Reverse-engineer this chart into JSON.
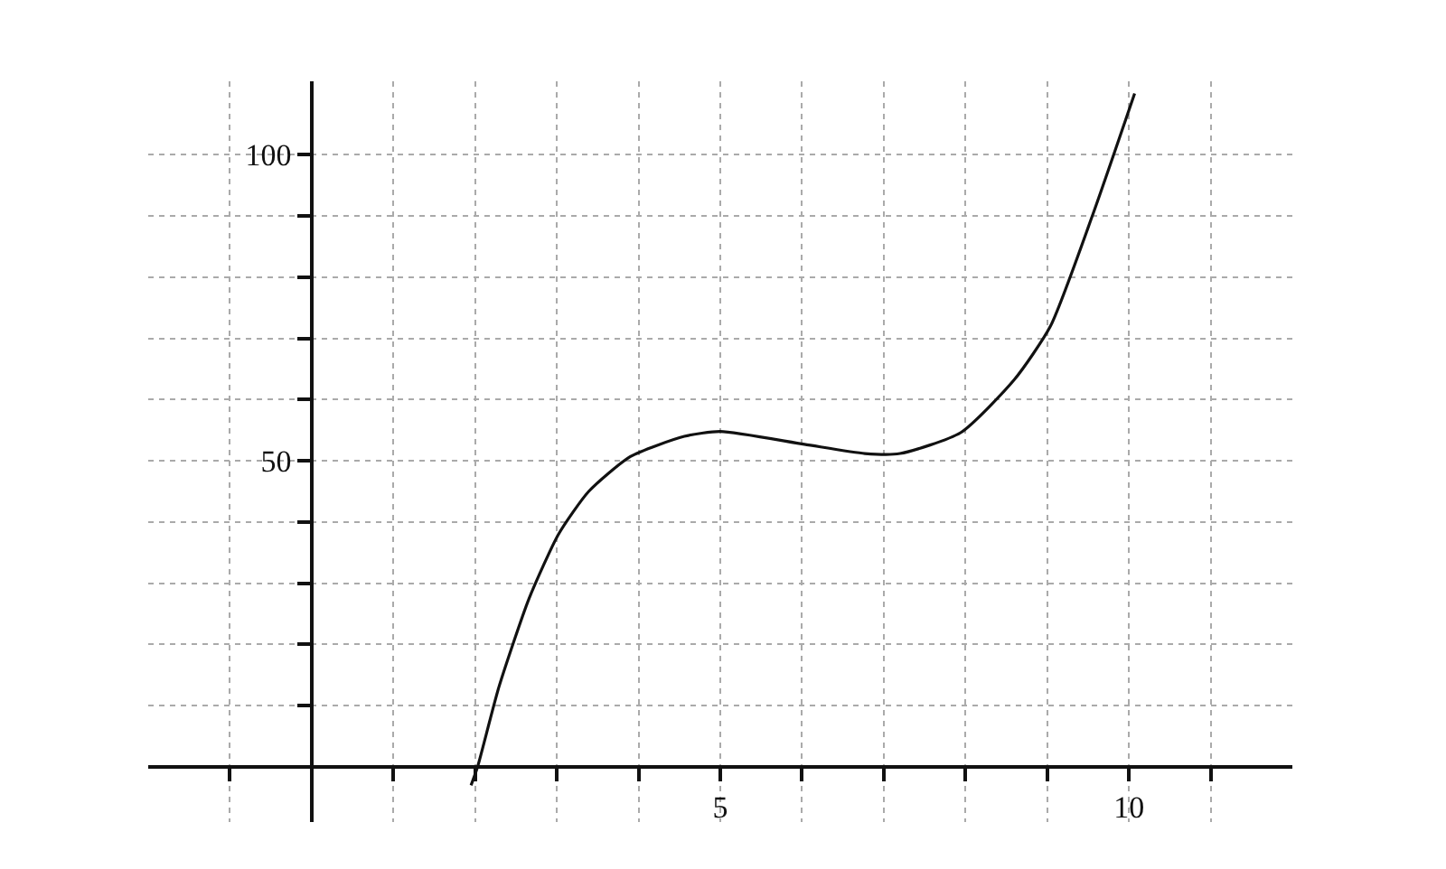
{
  "chart_data": {
    "type": "line",
    "x": [
      1.95,
      2.03,
      2.29,
      2.66,
      3.02,
      3.39,
      3.9,
      4.56,
      5,
      6.03,
      6.77,
      7.2,
      7.94,
      8.6,
      9.04,
      9.56,
      10.07
    ],
    "series": [
      {
        "color": "#111111",
        "values": [
          -3,
          0,
          13,
          27.5,
          38,
          45,
          50.7,
          54,
          54.8,
          52.7,
          51.2,
          51.2,
          54.6,
          63.3,
          72,
          90.3,
          110
        ]
      }
    ],
    "xlim": [
      -2,
      12
    ],
    "ylim": [
      -9,
      112
    ],
    "xticks": [
      {
        "value": -1,
        "label": null
      },
      {
        "value": 0,
        "label": null
      },
      {
        "value": 1,
        "label": null
      },
      {
        "value": 2,
        "label": null
      },
      {
        "value": 3,
        "label": null
      },
      {
        "value": 4,
        "label": null
      },
      5,
      {
        "value": 6,
        "label": null
      },
      {
        "value": 7,
        "label": null
      },
      {
        "value": 8,
        "label": null
      },
      {
        "value": 9,
        "label": null
      },
      10,
      {
        "value": 11,
        "label": null
      }
    ],
    "yticks": [
      {
        "value": 10,
        "label": null
      },
      {
        "value": 20,
        "label": null
      },
      {
        "value": 30,
        "label": null
      },
      {
        "value": 40,
        "label": null
      },
      50,
      {
        "value": 60,
        "label": null
      },
      {
        "value": 70,
        "label": null
      },
      {
        "value": 80,
        "label": null
      },
      {
        "value": 90,
        "label": null
      },
      100
    ],
    "grid": true
  }
}
